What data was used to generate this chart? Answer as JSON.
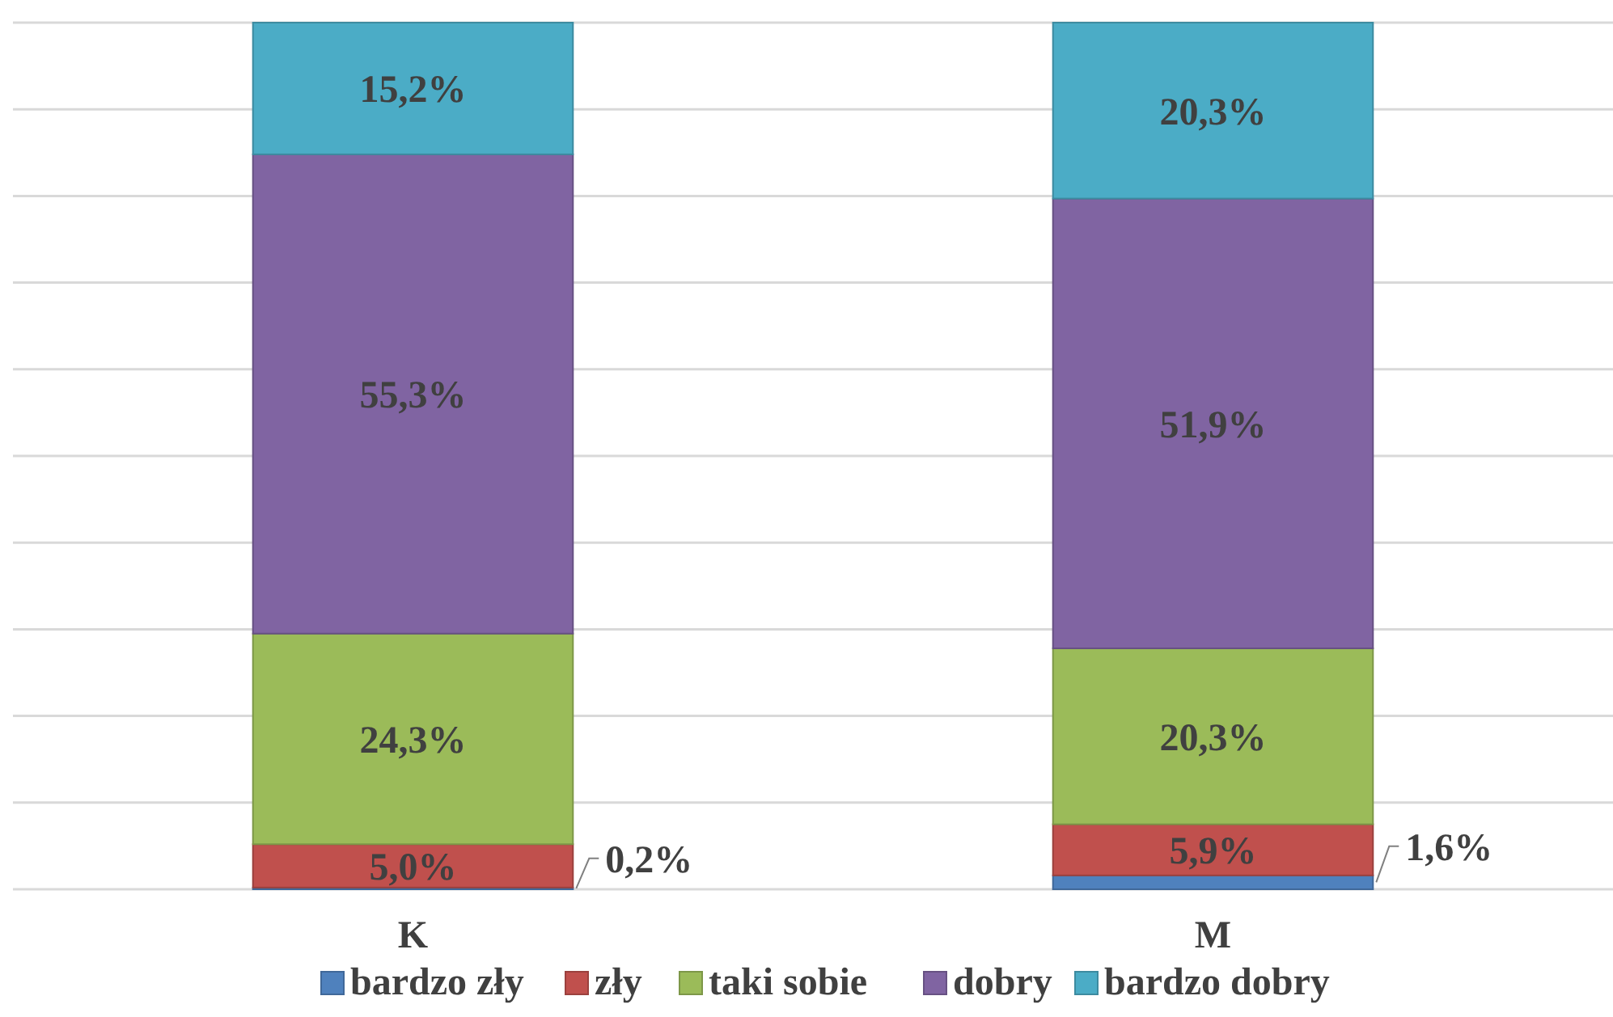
{
  "chart_data": {
    "type": "bar",
    "stacked": true,
    "categories": [
      "K",
      "M"
    ],
    "ylim": [
      0,
      100
    ],
    "yticks": [
      {
        "value": 0,
        "label": null
      },
      {
        "value": 10,
        "label": null
      },
      {
        "value": 20,
        "label": null
      },
      {
        "value": 30,
        "label": null
      },
      {
        "value": 40,
        "label": null
      },
      {
        "value": 50,
        "label": null
      },
      {
        "value": 60,
        "label": null
      },
      {
        "value": 70,
        "label": null
      },
      {
        "value": 80,
        "label": null
      },
      {
        "value": 90,
        "label": null
      },
      {
        "value": 100,
        "label": null
      }
    ],
    "grid": "y",
    "tick_labels": "x",
    "legend": "bottom",
    "series": [
      {
        "name": "bardzo zły",
        "color": "#4f81bd",
        "values": [
          0.2,
          1.6
        ],
        "value_labels": [
          "0,2%",
          "1,6%"
        ]
      },
      {
        "name": "zły",
        "color": "#c0504d",
        "values": [
          5.0,
          5.9
        ],
        "value_labels": [
          "5,0%",
          "5,9%"
        ]
      },
      {
        "name": "taki sobie",
        "color": "#9bbb59",
        "values": [
          24.3,
          20.3
        ],
        "value_labels": [
          "24,3%",
          "20,3%"
        ]
      },
      {
        "name": "dobry",
        "color": "#8064a2",
        "values": [
          55.3,
          51.9
        ],
        "value_labels": [
          "55,3%",
          "51,9%"
        ]
      },
      {
        "name": "bardzo dobry",
        "color": "#4bacc6",
        "values": [
          15.2,
          20.3
        ],
        "value_labels": [
          "15,2%",
          "20,3%"
        ]
      }
    ]
  }
}
